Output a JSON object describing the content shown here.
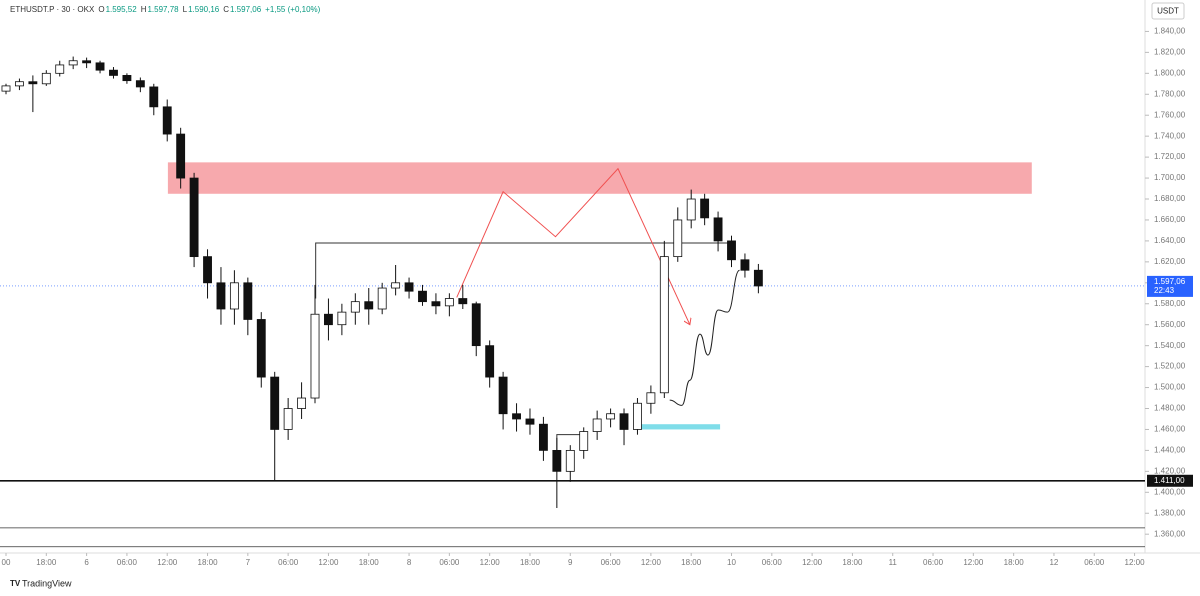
{
  "chart_data": {
    "type": "candlestick",
    "header": {
      "symbol": "ETHUSDT.P · 30 · OKX",
      "fields": [
        {
          "key": "O",
          "label": "1.595,52"
        },
        {
          "key": "H",
          "label": "1.597,78"
        },
        {
          "key": "L",
          "label": "1.590,16"
        },
        {
          "key": "C",
          "label": "1.597,06"
        }
      ],
      "change": "+1,55 (+0,10%)"
    },
    "currency": "USDT",
    "brand": "TradingView",
    "x": [
      0,
      2,
      4,
      6,
      8,
      10,
      12,
      14,
      16,
      18,
      20,
      22,
      24,
      26,
      28,
      30,
      32,
      34,
      36,
      38,
      40,
      42,
      44,
      46,
      48,
      50,
      52,
      54,
      56,
      58,
      60,
      62,
      64,
      66,
      68,
      70,
      72,
      74,
      76,
      78,
      80,
      82,
      84,
      86,
      88,
      90,
      92,
      94,
      96,
      98,
      100,
      102,
      104,
      106,
      108,
      110,
      112
    ],
    "open": [
      1783,
      1788,
      1792,
      1790,
      1800,
      1808,
      1812,
      1810,
      1803,
      1798,
      1793,
      1787,
      1768,
      1742,
      1700,
      1625,
      1600,
      1575,
      1600,
      1565,
      1510,
      1460,
      1480,
      1490,
      1570,
      1560,
      1572,
      1582,
      1575,
      1595,
      1600,
      1592,
      1582,
      1578,
      1585,
      1580,
      1540,
      1510,
      1475,
      1470,
      1465,
      1440,
      1420,
      1440,
      1458,
      1470,
      1475,
      1460,
      1485,
      1495,
      1625,
      1660,
      1680,
      1662,
      1640,
      1622,
      1612
    ],
    "high": [
      1790,
      1795,
      1798,
      1803,
      1812,
      1816,
      1815,
      1812,
      1806,
      1800,
      1796,
      1790,
      1775,
      1748,
      1705,
      1632,
      1615,
      1612,
      1605,
      1572,
      1515,
      1490,
      1505,
      1598,
      1585,
      1580,
      1590,
      1595,
      1600,
      1617,
      1605,
      1598,
      1590,
      1590,
      1598,
      1582,
      1545,
      1515,
      1485,
      1480,
      1472,
      1452,
      1445,
      1462,
      1478,
      1480,
      1480,
      1490,
      1502,
      1640,
      1672,
      1689,
      1685,
      1668,
      1645,
      1628,
      1618
    ],
    "low": [
      1780,
      1784,
      1763,
      1788,
      1797,
      1804,
      1805,
      1800,
      1795,
      1790,
      1782,
      1760,
      1735,
      1690,
      1615,
      1585,
      1560,
      1560,
      1550,
      1500,
      1411,
      1450,
      1470,
      1485,
      1545,
      1550,
      1560,
      1560,
      1570,
      1588,
      1585,
      1578,
      1570,
      1568,
      1575,
      1530,
      1500,
      1460,
      1458,
      1455,
      1430,
      1385,
      1410,
      1432,
      1450,
      1462,
      1445,
      1455,
      1475,
      1490,
      1620,
      1652,
      1655,
      1630,
      1615,
      1605,
      1590
    ],
    "close": [
      1788,
      1792,
      1790,
      1800,
      1808,
      1812,
      1810,
      1803,
      1798,
      1793,
      1787,
      1768,
      1742,
      1700,
      1625,
      1600,
      1575,
      1600,
      1565,
      1510,
      1460,
      1480,
      1490,
      1570,
      1560,
      1572,
      1582,
      1575,
      1595,
      1600,
      1592,
      1582,
      1578,
      1585,
      1580,
      1540,
      1510,
      1475,
      1470,
      1465,
      1440,
      1420,
      1440,
      1458,
      1470,
      1475,
      1460,
      1485,
      1495,
      1625,
      1660,
      1680,
      1662,
      1640,
      1622,
      1612,
      1597
    ],
    "xlim": [
      0,
      170
    ],
    "ylim": [
      1343,
      1870
    ],
    "xticks": [
      {
        "value": 0,
        "label": "00"
      },
      {
        "value": 6,
        "label": "18:00"
      },
      {
        "value": 12,
        "label": "6"
      },
      {
        "value": 18,
        "label": "06:00"
      },
      {
        "value": 24,
        "label": "12:00"
      },
      {
        "value": 30,
        "label": "18:00"
      },
      {
        "value": 36,
        "label": "7"
      },
      {
        "value": 42,
        "label": "06:00"
      },
      {
        "value": 48,
        "label": "12:00"
      },
      {
        "value": 54,
        "label": "18:00"
      },
      {
        "value": 60,
        "label": "8"
      },
      {
        "value": 66,
        "label": "06:00"
      },
      {
        "value": 72,
        "label": "12:00"
      },
      {
        "value": 78,
        "label": "18:00"
      },
      {
        "value": 84,
        "label": "9"
      },
      {
        "value": 90,
        "label": "06:00"
      },
      {
        "value": 96,
        "label": "12:00"
      },
      {
        "value": 102,
        "label": "18:00"
      },
      {
        "value": 108,
        "label": "10"
      },
      {
        "value": 114,
        "label": "06:00"
      },
      {
        "value": 120,
        "label": "12:00"
      },
      {
        "value": 126,
        "label": "18:00"
      },
      {
        "value": 132,
        "label": "11"
      },
      {
        "value": 138,
        "label": "06:00"
      },
      {
        "value": 144,
        "label": "12:00"
      },
      {
        "value": 150,
        "label": "18:00"
      },
      {
        "value": 156,
        "label": "12"
      },
      {
        "value": 162,
        "label": "06:00"
      },
      {
        "value": 168,
        "label": "12:00"
      }
    ],
    "yticks": [
      {
        "value": 1360,
        "label": "1.360,00"
      },
      {
        "value": 1380,
        "label": "1.380,00"
      },
      {
        "value": 1400,
        "label": "1.400,00"
      },
      {
        "value": 1420,
        "label": "1.420,00"
      },
      {
        "value": 1440,
        "label": "1.440,00"
      },
      {
        "value": 1460,
        "label": "1.460,00"
      },
      {
        "value": 1480,
        "label": "1.480,00"
      },
      {
        "value": 1500,
        "label": "1.500,00"
      },
      {
        "value": 1520,
        "label": "1.520,00"
      },
      {
        "value": 1540,
        "label": "1.540,00"
      },
      {
        "value": 1560,
        "label": "1.560,00"
      },
      {
        "value": 1580,
        "label": "1.580,00"
      },
      {
        "value": 1600,
        "label": "1.600,00"
      },
      {
        "value": 1620,
        "label": "1.620,00"
      },
      {
        "value": 1640,
        "label": "1.640,00"
      },
      {
        "value": 1660,
        "label": "1.660,00"
      },
      {
        "value": 1680,
        "label": "1.680,00"
      },
      {
        "value": 1700,
        "label": "1.700,00"
      },
      {
        "value": 1720,
        "label": "1.720,00"
      },
      {
        "value": 1740,
        "label": "1.740,00"
      },
      {
        "value": 1760,
        "label": "1.760,00"
      },
      {
        "value": 1780,
        "label": "1.780,00"
      },
      {
        "value": 1800,
        "label": "1.800,00"
      },
      {
        "value": 1820,
        "label": "1.820,00"
      },
      {
        "value": 1840,
        "label": "1.840,00"
      }
    ],
    "last_price": {
      "value": 1597.06,
      "label": "1.597,06",
      "countdown": "22:43",
      "color": "#2962ff"
    },
    "level": {
      "value": 1411,
      "label": "1.411,00"
    },
    "horizontal_lines": [
      1366,
      1348
    ],
    "zones": [
      {
        "x": [
          24.1,
          152.7
        ],
        "y": [
          1685,
          1715
        ],
        "color": "#f7a9ad"
      },
      {
        "x": [
          93.6,
          106.3
        ],
        "y": [
          1460,
          1465
        ],
        "color": "#7fdde9"
      }
    ],
    "paths": [
      {
        "x": [
          46.1,
          46.1,
          108
        ],
        "y": [
          1585,
          1638,
          1638
        ],
        "color": "#333333",
        "arrow": false
      },
      {
        "x": [
          82,
          82,
          86.2
        ],
        "y": [
          1420,
          1455,
          1455
        ],
        "color": "#333333",
        "arrow": false
      },
      {
        "x": [
          67.1,
          74,
          81.8,
          91.1,
          101.8
        ],
        "y": [
          1586,
          1687,
          1644,
          1709,
          1560
        ],
        "color": "#f05050",
        "arrow": true
      },
      {
        "x": [
          98.8,
          100.6,
          101.8,
          103.3,
          104.5,
          106,
          107.4,
          109.2
        ],
        "y": [
          1488,
          1483,
          1507,
          1551,
          1531,
          1574,
          1572,
          1612
        ],
        "color": "#222222",
        "arrow": false
      }
    ]
  }
}
